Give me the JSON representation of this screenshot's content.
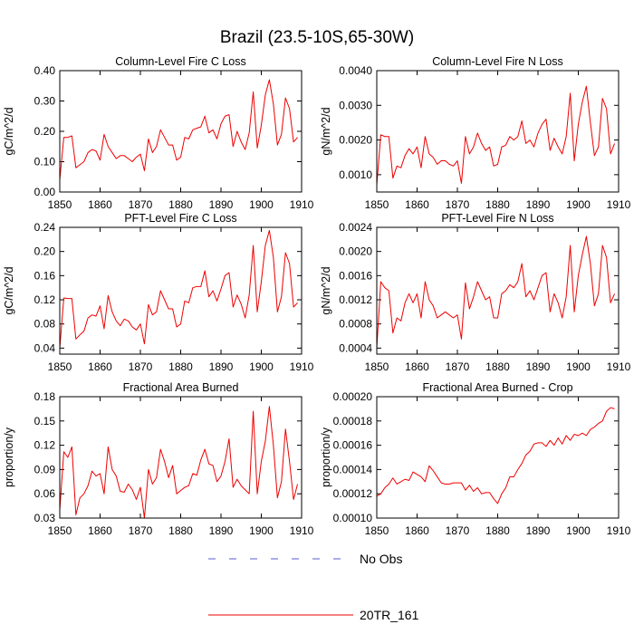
{
  "title": "Brazil (23.5-10S,65-30W)",
  "legend": {
    "entries": [
      {
        "label": "No Obs",
        "color": "#5b5bd6",
        "dash": true
      },
      {
        "label": "20TR_161",
        "color": "#ee0000",
        "dash": false
      }
    ]
  },
  "chart_data": [
    {
      "type": "line",
      "title": "Column-Level Fire C Loss",
      "xlabel": "",
      "ylabel": "gC/m^2/d",
      "xlim": [
        1850,
        1910
      ],
      "ylim": [
        0,
        0.4
      ],
      "xticks": [
        1850,
        1860,
        1870,
        1880,
        1890,
        1900,
        1910
      ],
      "xtick_labels": [
        "1850",
        "1860",
        "1870",
        "1880",
        "1890",
        "1900",
        "1910"
      ],
      "yticks": [
        0,
        0.1,
        0.2,
        0.3,
        0.4
      ],
      "ytick_labels": [
        "0.00",
        "0.10",
        "0.20",
        "0.30",
        "0.40"
      ],
      "x_start": 1850,
      "series": [
        {
          "name": "20TR_161",
          "color": "#ee0000",
          "values": [
            0.04,
            0.18,
            0.18,
            0.185,
            0.08,
            0.09,
            0.1,
            0.13,
            0.14,
            0.135,
            0.105,
            0.19,
            0.15,
            0.13,
            0.11,
            0.12,
            0.12,
            0.11,
            0.1,
            0.115,
            0.125,
            0.07,
            0.175,
            0.13,
            0.15,
            0.205,
            0.18,
            0.155,
            0.155,
            0.105,
            0.115,
            0.18,
            0.175,
            0.205,
            0.21,
            0.215,
            0.25,
            0.195,
            0.205,
            0.175,
            0.225,
            0.25,
            0.255,
            0.15,
            0.2,
            0.165,
            0.14,
            0.195,
            0.33,
            0.145,
            0.22,
            0.32,
            0.37,
            0.29,
            0.155,
            0.19,
            0.31,
            0.275,
            0.165,
            0.18
          ]
        }
      ]
    },
    {
      "type": "line",
      "title": "Column-Level Fire N Loss",
      "xlabel": "",
      "ylabel": "gN/m^2/d",
      "xlim": [
        1850,
        1910
      ],
      "ylim": [
        0.0005,
        0.004
      ],
      "xticks": [
        1850,
        1860,
        1870,
        1880,
        1890,
        1900,
        1910
      ],
      "xtick_labels": [
        "1850",
        "1860",
        "1870",
        "1880",
        "1890",
        "1900",
        "1910"
      ],
      "yticks": [
        0.001,
        0.002,
        0.003,
        0.004
      ],
      "ytick_labels": [
        "0.0010",
        "0.0020",
        "0.0030",
        "0.0040"
      ],
      "x_start": 1850,
      "series": [
        {
          "name": "20TR_161",
          "color": "#ee0000",
          "values": [
            0.0007,
            0.00215,
            0.0021,
            0.0021,
            0.0009,
            0.00125,
            0.0012,
            0.00155,
            0.00175,
            0.0016,
            0.0018,
            0.0012,
            0.0021,
            0.0016,
            0.0015,
            0.0013,
            0.0014,
            0.0014,
            0.0013,
            0.00125,
            0.0014,
            0.00075,
            0.0021,
            0.0016,
            0.0018,
            0.0022,
            0.0019,
            0.0017,
            0.0018,
            0.00125,
            0.0013,
            0.0018,
            0.00185,
            0.0021,
            0.002,
            0.0021,
            0.00255,
            0.0019,
            0.002,
            0.0018,
            0.0022,
            0.00245,
            0.0026,
            0.0017,
            0.00205,
            0.0018,
            0.0016,
            0.0021,
            0.00335,
            0.0014,
            0.00245,
            0.0031,
            0.00355,
            0.0025,
            0.00155,
            0.0018,
            0.0032,
            0.0029,
            0.0016,
            0.0019
          ]
        }
      ]
    },
    {
      "type": "line",
      "title": "PFT-Level Fire C Loss",
      "xlabel": "",
      "ylabel": "gC/m^2/d",
      "xlim": [
        1850,
        1910
      ],
      "ylim": [
        0.03,
        0.24
      ],
      "xticks": [
        1850,
        1860,
        1870,
        1880,
        1890,
        1900,
        1910
      ],
      "xtick_labels": [
        "1850",
        "1860",
        "1870",
        "1880",
        "1890",
        "1900",
        "1910"
      ],
      "yticks": [
        0.04,
        0.08,
        0.12,
        0.16,
        0.2,
        0.24
      ],
      "ytick_labels": [
        "0.04",
        "0.08",
        "0.12",
        "0.16",
        "0.20",
        "0.24"
      ],
      "x_start": 1850,
      "series": [
        {
          "name": "20TR_161",
          "color": "#ee0000",
          "values": [
            0.04,
            0.123,
            0.122,
            0.122,
            0.055,
            0.062,
            0.068,
            0.09,
            0.095,
            0.093,
            0.11,
            0.072,
            0.127,
            0.1,
            0.085,
            0.077,
            0.088,
            0.085,
            0.075,
            0.07,
            0.08,
            0.047,
            0.112,
            0.095,
            0.1,
            0.135,
            0.12,
            0.105,
            0.105,
            0.075,
            0.08,
            0.118,
            0.115,
            0.14,
            0.142,
            0.142,
            0.168,
            0.125,
            0.135,
            0.118,
            0.138,
            0.16,
            0.165,
            0.108,
            0.128,
            0.113,
            0.09,
            0.128,
            0.21,
            0.1,
            0.15,
            0.21,
            0.235,
            0.19,
            0.1,
            0.125,
            0.198,
            0.18,
            0.108,
            0.115
          ]
        }
      ]
    },
    {
      "type": "line",
      "title": "PFT-Level Fire N Loss",
      "xlabel": "",
      "ylabel": "gN/m^2/d",
      "xlim": [
        1850,
        1910
      ],
      "ylim": [
        0.0003,
        0.0024
      ],
      "xticks": [
        1850,
        1860,
        1870,
        1880,
        1890,
        1900,
        1910
      ],
      "xtick_labels": [
        "1850",
        "1860",
        "1870",
        "1880",
        "1890",
        "1900",
        "1910"
      ],
      "yticks": [
        0.0004,
        0.0008,
        0.0012,
        0.0016,
        0.002,
        0.0024
      ],
      "ytick_labels": [
        "0.0004",
        "0.0008",
        "0.0012",
        "0.0016",
        "0.0020",
        "0.0024"
      ],
      "x_start": 1850,
      "series": [
        {
          "name": "20TR_161",
          "color": "#ee0000",
          "values": [
            0.0004,
            0.0015,
            0.0014,
            0.00135,
            0.00065,
            0.0009,
            0.00085,
            0.00115,
            0.0013,
            0.00115,
            0.0013,
            0.0009,
            0.0015,
            0.0012,
            0.0011,
            0.0009,
            0.00095,
            0.001,
            0.00095,
            0.0009,
            0.00095,
            0.00055,
            0.00148,
            0.00105,
            0.00125,
            0.0015,
            0.00135,
            0.0012,
            0.00125,
            0.0009,
            0.0009,
            0.0013,
            0.00135,
            0.00145,
            0.0014,
            0.0015,
            0.0018,
            0.00125,
            0.00135,
            0.0012,
            0.0014,
            0.0016,
            0.00165,
            0.001,
            0.0013,
            0.00115,
            0.0009,
            0.00125,
            0.0021,
            0.001,
            0.0016,
            0.00195,
            0.00225,
            0.0018,
            0.0011,
            0.0013,
            0.0021,
            0.0019,
            0.00115,
            0.0013
          ]
        }
      ]
    },
    {
      "type": "line",
      "title": "Fractional Area Burned",
      "xlabel": "",
      "ylabel": "proportion/y",
      "xlim": [
        1850,
        1910
      ],
      "ylim": [
        0.03,
        0.18
      ],
      "xticks": [
        1850,
        1860,
        1870,
        1880,
        1890,
        1900,
        1910
      ],
      "xtick_labels": [
        "1850",
        "1860",
        "1870",
        "1880",
        "1890",
        "1900",
        "1910"
      ],
      "yticks": [
        0.03,
        0.06,
        0.09,
        0.12,
        0.15,
        0.18
      ],
      "ytick_labels": [
        "0.03",
        "0.06",
        "0.09",
        "0.12",
        "0.15",
        "0.18"
      ],
      "x_start": 1850,
      "series": [
        {
          "name": "20TR_161",
          "color": "#ee0000",
          "values": [
            0.04,
            0.112,
            0.105,
            0.118,
            0.034,
            0.055,
            0.06,
            0.07,
            0.088,
            0.082,
            0.085,
            0.06,
            0.118,
            0.09,
            0.082,
            0.063,
            0.062,
            0.072,
            0.065,
            0.053,
            0.068,
            0.03,
            0.09,
            0.072,
            0.08,
            0.115,
            0.1,
            0.08,
            0.095,
            0.06,
            0.064,
            0.068,
            0.07,
            0.085,
            0.083,
            0.102,
            0.115,
            0.097,
            0.095,
            0.075,
            0.082,
            0.1,
            0.128,
            0.068,
            0.078,
            0.07,
            0.065,
            0.06,
            0.162,
            0.06,
            0.1,
            0.125,
            0.168,
            0.12,
            0.055,
            0.075,
            0.14,
            0.1,
            0.053,
            0.072
          ]
        }
      ]
    },
    {
      "type": "line",
      "title": "Fractional Area Burned - Crop",
      "xlabel": "",
      "ylabel": "proportion/y",
      "xlim": [
        1850,
        1910
      ],
      "ylim": [
        0.0001,
        0.0002
      ],
      "xticks": [
        1850,
        1860,
        1870,
        1880,
        1890,
        1900,
        1910
      ],
      "xtick_labels": [
        "1850",
        "1860",
        "1870",
        "1880",
        "1890",
        "1900",
        "1910"
      ],
      "yticks": [
        0.0001,
        0.00012,
        0.00014,
        0.00016,
        0.00018,
        0.0002
      ],
      "ytick_labels": [
        "0.00010",
        "0.00012",
        "0.00014",
        "0.00016",
        "0.00018",
        "0.00020"
      ],
      "x_start": 1850,
      "series": [
        {
          "name": "20TR_161",
          "color": "#ee0000",
          "values": [
            0.000118,
            0.00012,
            0.000125,
            0.000128,
            0.000133,
            0.000128,
            0.00013,
            0.000132,
            0.000131,
            0.000138,
            0.000136,
            0.000134,
            0.00013,
            0.000143,
            0.000139,
            0.000134,
            0.000129,
            0.000128,
            0.000128,
            0.000129,
            0.000129,
            0.000129,
            0.000123,
            0.000127,
            0.000122,
            0.000125,
            0.00012,
            0.000121,
            0.000121,
            0.000116,
            0.000112,
            0.00012,
            0.000125,
            0.000134,
            0.000134,
            0.00014,
            0.000145,
            0.000152,
            0.000155,
            0.000161,
            0.000162,
            0.000162,
            0.000159,
            0.000164,
            0.00016,
            0.000166,
            0.000161,
            0.000168,
            0.000164,
            0.000169,
            0.000168,
            0.00017,
            0.000168,
            0.000173,
            0.000175,
            0.000178,
            0.00018,
            0.000188,
            0.000191,
            0.00019
          ]
        }
      ]
    }
  ]
}
